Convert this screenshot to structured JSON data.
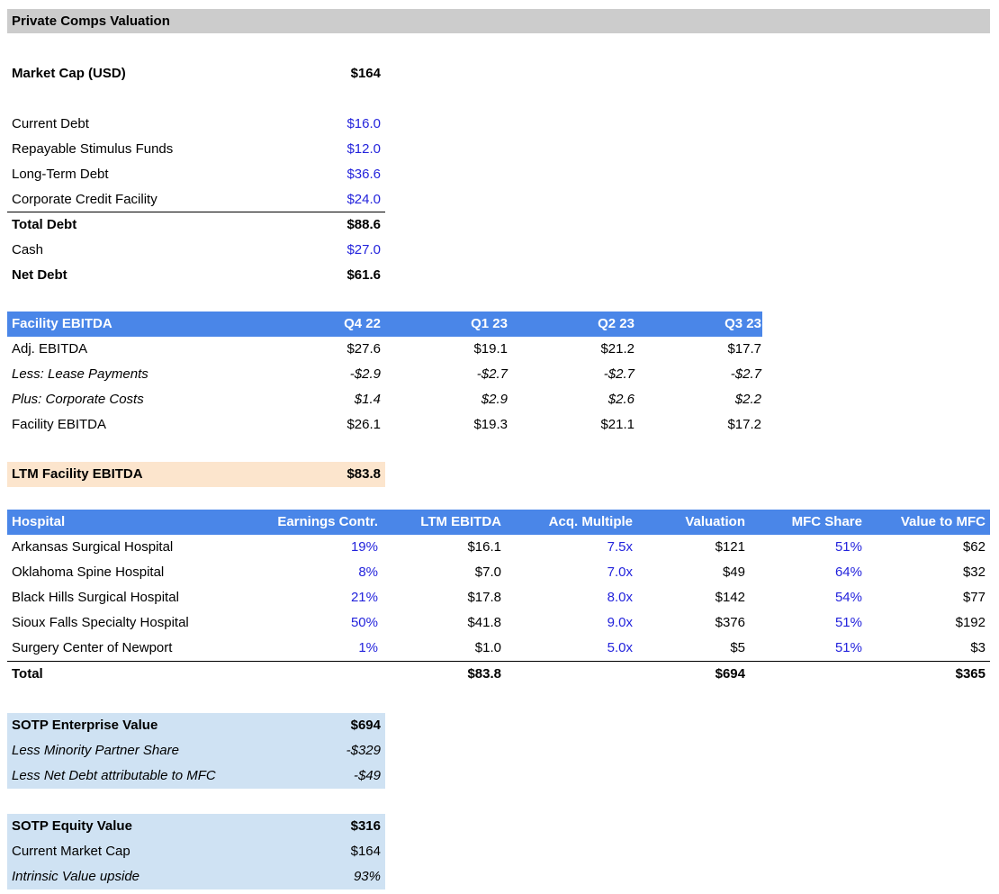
{
  "title": "Private Comps Valuation",
  "market_cap": {
    "label": "Market Cap (USD)",
    "value": "$164"
  },
  "debt_section": {
    "rows": [
      {
        "label": "Current Debt",
        "value": "$16.0"
      },
      {
        "label": "Repayable Stimulus Funds",
        "value": "$12.0"
      },
      {
        "label": "Long-Term Debt",
        "value": "$36.6"
      },
      {
        "label": "Corporate Credit Facility",
        "value": "$24.0"
      },
      {
        "label": "Total Debt",
        "value": "$88.6"
      },
      {
        "label": "Cash",
        "value": "$27.0"
      },
      {
        "label": "Net Debt",
        "value": "$61.6"
      }
    ]
  },
  "facility_ebitda": {
    "header": [
      "Facility EBITDA",
      "Q4 22",
      "Q1 23",
      "Q2 23",
      "Q3 23"
    ],
    "rows": [
      {
        "label": "Adj. EBITDA",
        "values": [
          "$27.6",
          "$19.1",
          "$21.2",
          "$17.7"
        ]
      },
      {
        "label": "Less: Lease Payments",
        "values": [
          "-$2.9",
          "-$2.7",
          "-$2.7",
          "-$2.7"
        ]
      },
      {
        "label": "Plus: Corporate Costs",
        "values": [
          "$1.4",
          "$2.9",
          "$2.6",
          "$2.2"
        ]
      },
      {
        "label": "Facility EBITDA",
        "values": [
          "$26.1",
          "$19.3",
          "$21.1",
          "$17.2"
        ]
      }
    ]
  },
  "ltm_facility_ebitda": {
    "label": "LTM Facility EBITDA",
    "value": "$83.8"
  },
  "hospital_table": {
    "header": [
      "Hospital",
      "Earnings Contr.",
      "LTM EBITDA",
      "Acq. Multiple",
      "Valuation",
      "MFC Share",
      "Value to MFC"
    ],
    "rows": [
      {
        "name": "Arkansas Surgical Hospital",
        "values": [
          "19%",
          "$16.1",
          "7.5x",
          "$121",
          "51%",
          "$62"
        ]
      },
      {
        "name": "Oklahoma Spine Hospital",
        "values": [
          "8%",
          "$7.0",
          "7.0x",
          "$49",
          "64%",
          "$32"
        ]
      },
      {
        "name": "Black Hills Surgical Hospital",
        "values": [
          "21%",
          "$17.8",
          "8.0x",
          "$142",
          "54%",
          "$77"
        ]
      },
      {
        "name": "Sioux Falls Specialty Hospital",
        "values": [
          "50%",
          "$41.8",
          "9.0x",
          "$376",
          "51%",
          "$192"
        ]
      },
      {
        "name": "Surgery Center of Newport",
        "values": [
          "1%",
          "$1.0",
          "5.0x",
          "$5",
          "51%",
          "$3"
        ]
      }
    ],
    "total": {
      "label": "Total",
      "values": [
        "",
        "$83.8",
        "",
        "$694",
        "",
        "$365"
      ]
    }
  },
  "sotp_enterprise": {
    "rows": [
      {
        "label": "SOTP Enterprise Value",
        "value": "$694"
      },
      {
        "label": "Less Minority Partner Share",
        "value": "-$329"
      },
      {
        "label": "Less Net Debt attributable to MFC",
        "value": "-$49"
      }
    ]
  },
  "sotp_equity": {
    "rows": [
      {
        "label": "SOTP Equity Value",
        "value": "$316"
      },
      {
        "label": "Current Market Cap",
        "value": "$164"
      },
      {
        "label": "Intrinsic Value upside",
        "value": "93%"
      }
    ]
  },
  "colors": {
    "header_blue": "#4a86e8",
    "ltm_peach": "#fce5cd",
    "sotp_light_blue": "#cfe2f3",
    "title_gray": "#cccccc",
    "input_value_blue": "#2323dc"
  }
}
